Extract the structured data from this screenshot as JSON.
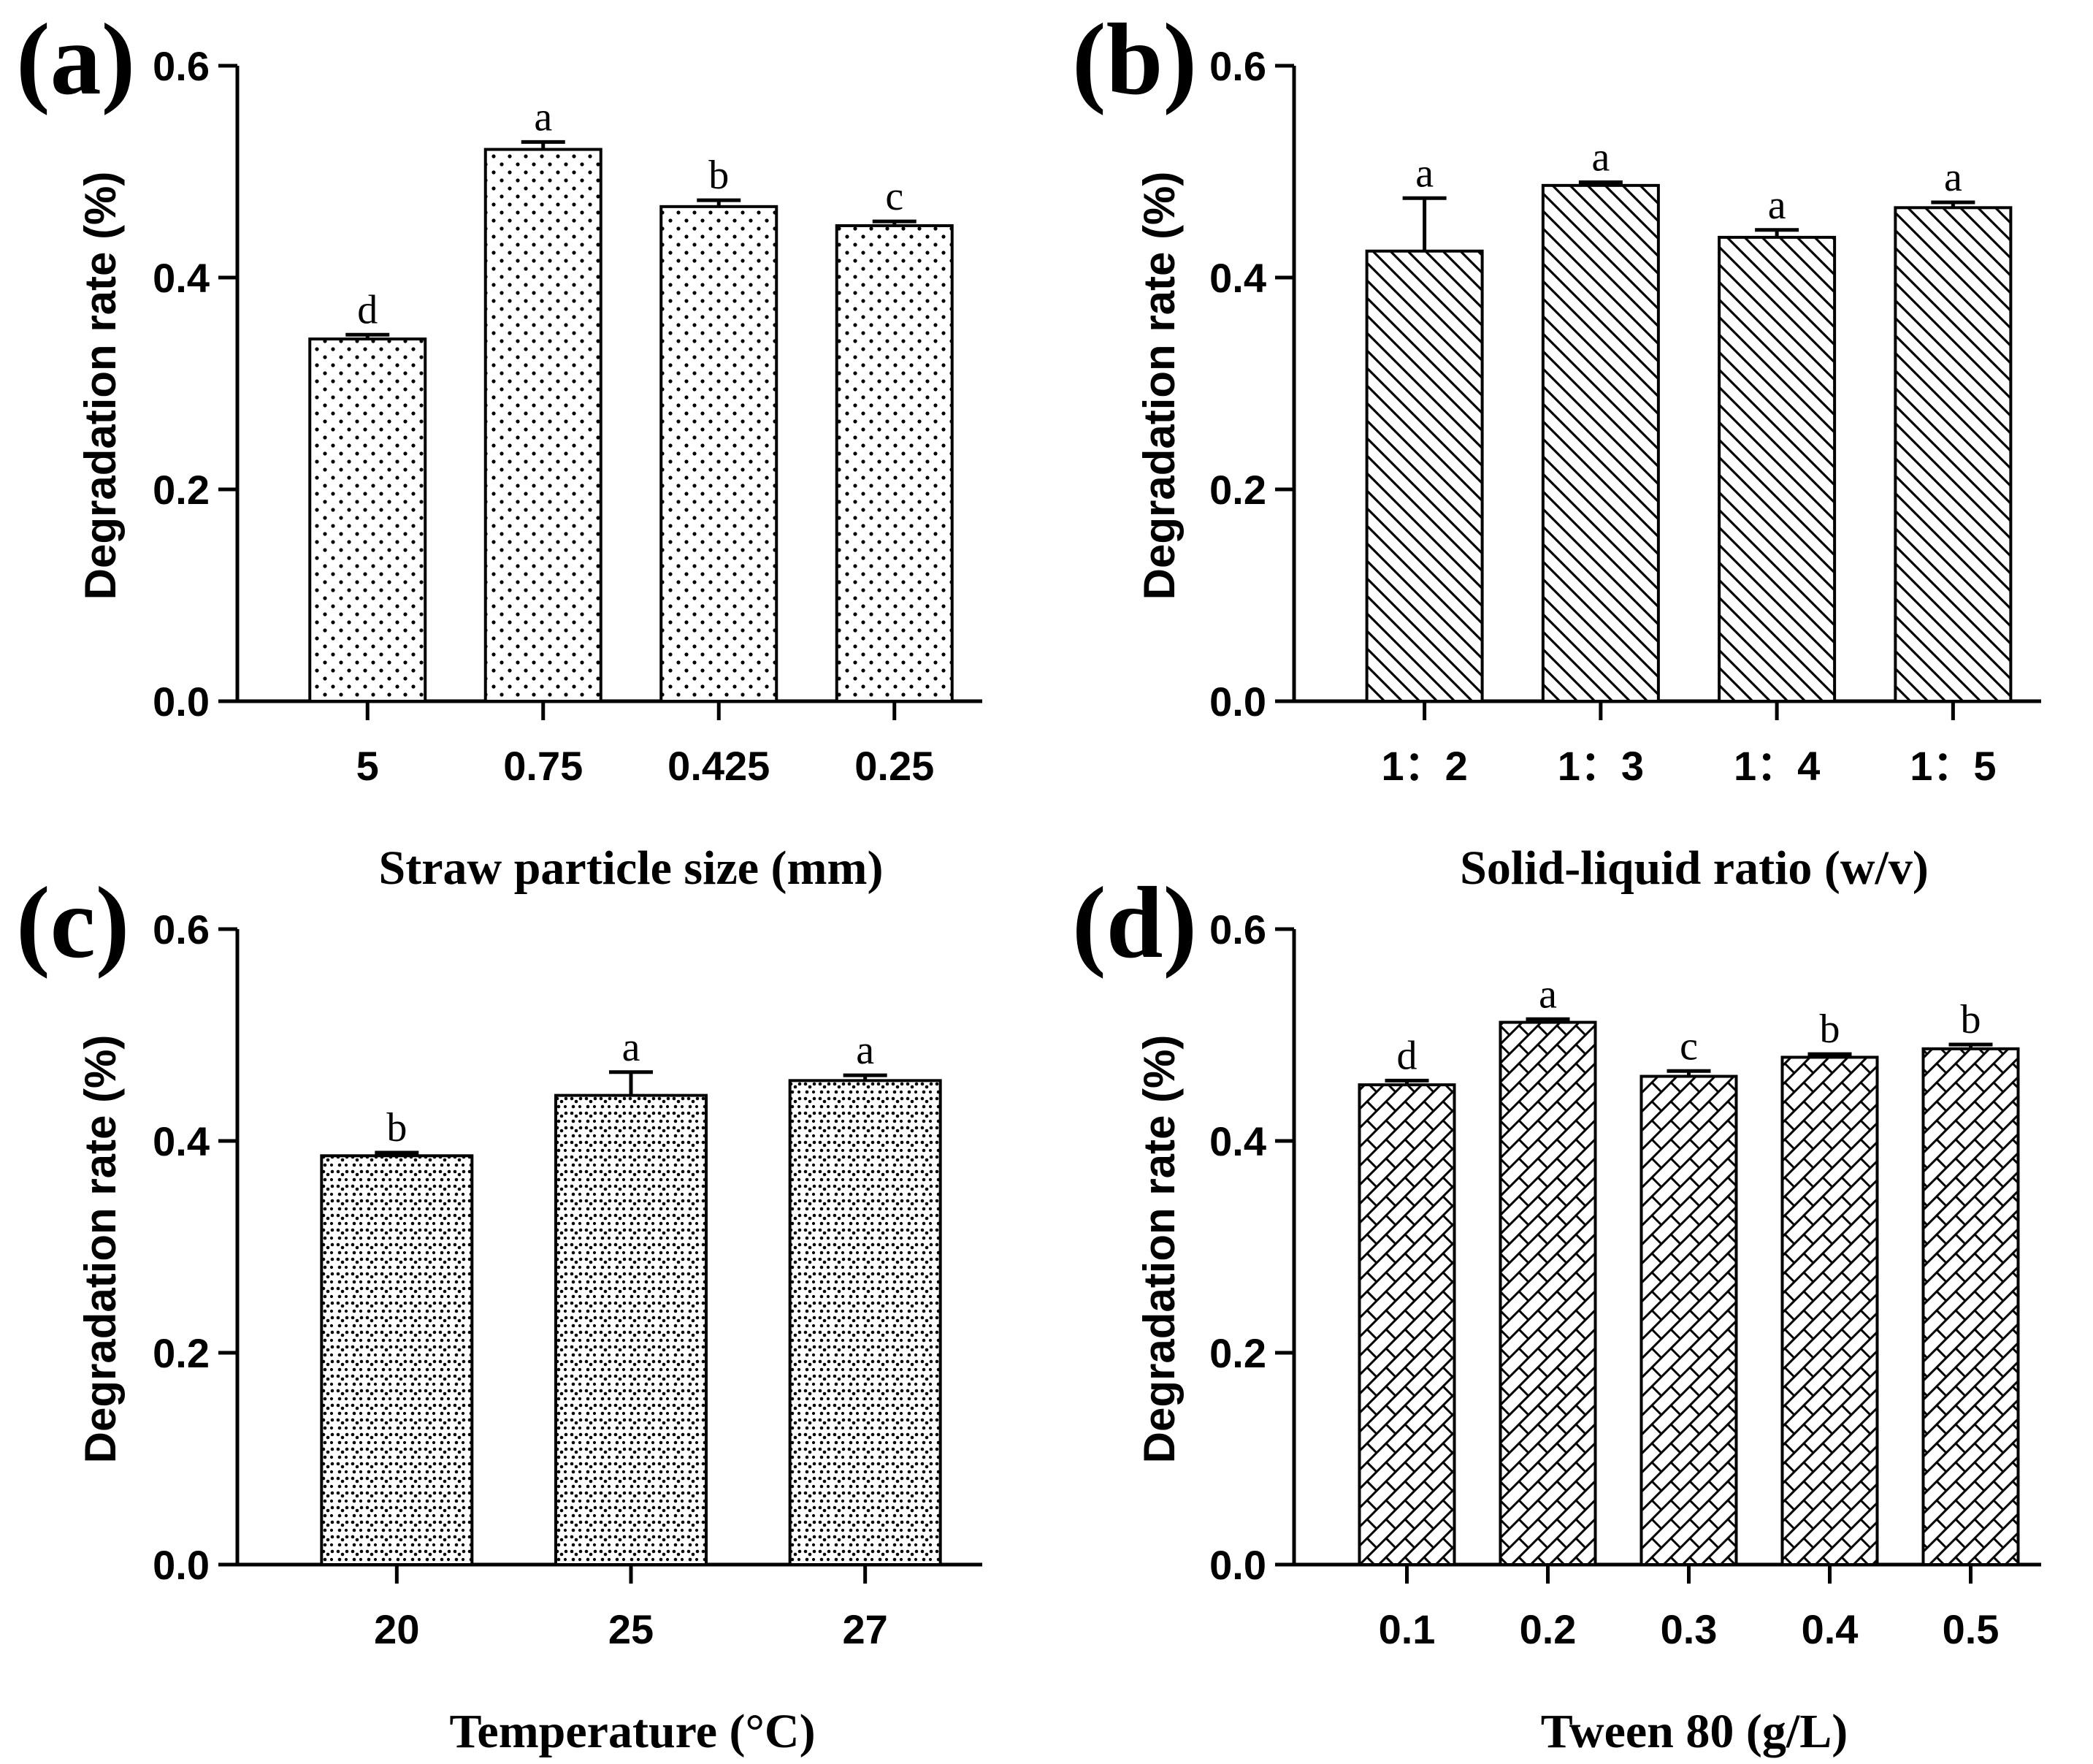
{
  "chart_data": [
    {
      "type": "bar",
      "panel": "(a)",
      "title": "",
      "xlabel": "Straw particle size (mm)",
      "ylabel": "Degradation rate (%)",
      "ylim": [
        0,
        0.6
      ],
      "yticks": [
        "0.0",
        "0.2",
        "0.4",
        "0.6"
      ],
      "categories": [
        "5",
        "0.75",
        "0.425",
        "0.25"
      ],
      "values": [
        0.342,
        0.521,
        0.467,
        0.449
      ],
      "errors": [
        0.004,
        0.007,
        0.006,
        0.004
      ],
      "significance": [
        "d",
        "a",
        "b",
        "c"
      ],
      "pattern": "dots"
    },
    {
      "type": "bar",
      "panel": "(b)",
      "title": "",
      "xlabel": "Solid-liquid ratio (w/v)",
      "ylabel": "Degradation rate (%)",
      "ylim": [
        0,
        0.6
      ],
      "yticks": [
        "0.0",
        "0.2",
        "0.4",
        "0.6"
      ],
      "categories": [
        "1：2",
        "1：3",
        "1：4",
        "1：5"
      ],
      "values": [
        0.425,
        0.487,
        0.438,
        0.466
      ],
      "errors": [
        0.05,
        0.003,
        0.007,
        0.005
      ],
      "significance": [
        "a",
        "a",
        "a",
        "a"
      ],
      "pattern": "diagonal"
    },
    {
      "type": "bar",
      "panel": "(c)",
      "title": "",
      "xlabel": "Temperature (°C)",
      "ylabel": "Degradation rate (%)",
      "ylim": [
        0,
        0.6
      ],
      "yticks": [
        "0.0",
        "0.2",
        "0.4",
        "0.6"
      ],
      "categories": [
        "20",
        "25",
        "27"
      ],
      "values": [
        0.386,
        0.443,
        0.457
      ],
      "errors": [
        0.003,
        0.022,
        0.005
      ],
      "significance": [
        "b",
        "a",
        "a"
      ],
      "pattern": "speckle"
    },
    {
      "type": "bar",
      "panel": "(d)",
      "title": "",
      "xlabel": "Tween 80 (g/L)",
      "ylabel": "Degradation rate (%)",
      "ylim": [
        0,
        0.6
      ],
      "yticks": [
        "0.0",
        "0.2",
        "0.4",
        "0.6"
      ],
      "categories": [
        "0.1",
        "0.2",
        "0.3",
        "0.4",
        "0.5"
      ],
      "values": [
        0.453,
        0.512,
        0.461,
        0.479,
        0.487
      ],
      "errors": [
        0.004,
        0.003,
        0.005,
        0.003,
        0.004
      ],
      "significance": [
        "d",
        "a",
        "c",
        "b",
        "b"
      ],
      "pattern": "crosshatch"
    }
  ]
}
